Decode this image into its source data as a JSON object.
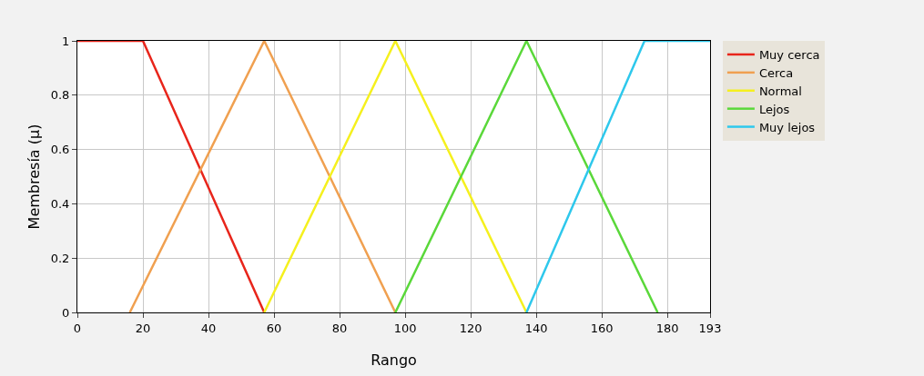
{
  "chart_data": {
    "type": "line",
    "xlabel": "Rango",
    "ylabel": "Membresía (µ)",
    "series": [
      {
        "name": "Muy cerca",
        "color": "#e8251b",
        "x": [
          0,
          20,
          57
        ],
        "values": [
          1,
          1,
          0
        ]
      },
      {
        "name": "Cerca",
        "color": "#f0a050",
        "x": [
          16,
          57,
          97
        ],
        "values": [
          0,
          1,
          0
        ]
      },
      {
        "name": "Normal",
        "color": "#f5f01e",
        "x": [
          57,
          97,
          137
        ],
        "values": [
          0,
          1,
          0
        ]
      },
      {
        "name": "Lejos",
        "color": "#5ad83a",
        "x": [
          97,
          137,
          177
        ],
        "values": [
          0,
          1,
          0
        ]
      },
      {
        "name": "Muy lejos",
        "color": "#2ec8ec",
        "x": [
          137,
          173,
          193
        ],
        "values": [
          0,
          1,
          1
        ]
      }
    ],
    "xlim": [
      0,
      193
    ],
    "xticks": [
      0,
      20,
      40,
      60,
      80,
      100,
      120,
      140,
      160,
      180,
      193
    ],
    "ylim": [
      0,
      1
    ],
    "yticks": [
      0,
      0.2,
      0.4,
      0.6,
      0.8,
      1
    ],
    "grid": true,
    "legend": "top right",
    "marker": "none",
    "line_style": "solid"
  }
}
